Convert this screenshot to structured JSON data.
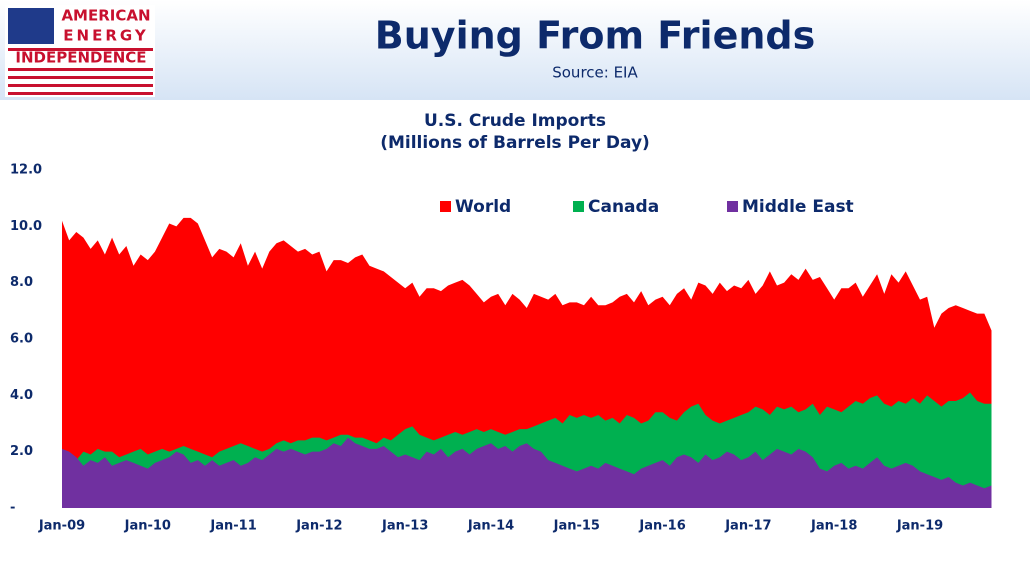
{
  "header": {
    "logo": [
      "AMERICAN",
      "ENERGY",
      "INDEPENDENCE"
    ],
    "title": "Buying From Friends",
    "source": "Source: EIA"
  },
  "chart_data": {
    "type": "area",
    "title": [
      "U.S. Crude Imports",
      "(Millions of Barrels Per Day)"
    ],
    "categories": [
      "Jan-09",
      null,
      null,
      null,
      null,
      null,
      null,
      null,
      null,
      null,
      null,
      null,
      "Jan-10",
      null,
      null,
      null,
      null,
      null,
      null,
      null,
      null,
      null,
      null,
      null,
      "Jan-11",
      null,
      null,
      null,
      null,
      null,
      null,
      null,
      null,
      null,
      null,
      null,
      "Jan-12",
      null,
      null,
      null,
      null,
      null,
      null,
      null,
      null,
      null,
      null,
      null,
      "Jan-13",
      null,
      null,
      null,
      null,
      null,
      null,
      null,
      null,
      null,
      null,
      null,
      "Jan-14",
      null,
      null,
      null,
      null,
      null,
      null,
      null,
      null,
      null,
      null,
      null,
      "Jan-15",
      null,
      null,
      null,
      null,
      null,
      null,
      null,
      null,
      null,
      null,
      null,
      "Jan-16",
      null,
      null,
      null,
      null,
      null,
      null,
      null,
      null,
      null,
      null,
      null,
      "Jan-17",
      null,
      null,
      null,
      null,
      null,
      null,
      null,
      null,
      null,
      null,
      null,
      "Jan-18",
      null,
      null,
      null,
      null,
      null,
      null,
      null,
      null,
      null,
      null,
      null,
      "Jan-19",
      null,
      null,
      null,
      null,
      null,
      null,
      null,
      null,
      null,
      null
    ],
    "series": [
      {
        "name": "World",
        "color": "#ff0000",
        "values": [
          10.2,
          9.5,
          9.8,
          9.6,
          9.2,
          9.5,
          9.0,
          9.6,
          9.0,
          9.3,
          8.6,
          9.0,
          8.8,
          9.1,
          9.6,
          10.1,
          10.0,
          10.3,
          10.3,
          10.1,
          9.5,
          8.9,
          9.2,
          9.1,
          8.9,
          9.4,
          8.6,
          9.1,
          8.5,
          9.1,
          9.4,
          9.5,
          9.3,
          9.1,
          9.2,
          9.0,
          9.1,
          8.4,
          8.8,
          8.8,
          8.7,
          8.9,
          9.0,
          8.6,
          8.5,
          8.4,
          8.2,
          8.0,
          7.8,
          8.0,
          7.5,
          7.8,
          7.8,
          7.7,
          7.9,
          8.0,
          8.1,
          7.9,
          7.6,
          7.3,
          7.5,
          7.6,
          7.2,
          7.6,
          7.4,
          7.1,
          7.6,
          7.5,
          7.4,
          7.6,
          7.2,
          7.3,
          7.3,
          7.2,
          7.5,
          7.2,
          7.2,
          7.3,
          7.5,
          7.6,
          7.3,
          7.7,
          7.2,
          7.4,
          7.5,
          7.2,
          7.6,
          7.8,
          7.4,
          8.0,
          7.9,
          7.6,
          8.0,
          7.7,
          7.9,
          7.8,
          8.1,
          7.6,
          7.9,
          8.4,
          7.9,
          8.0,
          8.3,
          8.1,
          8.5,
          8.1,
          8.2,
          7.8,
          7.4,
          7.8,
          7.8,
          8.0,
          7.5,
          7.9,
          8.3,
          7.6,
          8.3,
          8.0,
          8.4,
          7.9,
          7.4,
          7.5,
          6.4,
          6.9,
          7.1,
          7.2,
          7.1,
          7.0,
          6.9,
          6.9,
          6.3
        ]
      },
      {
        "name": "Canada",
        "color": "#00b050",
        "values": [
          1.9,
          1.8,
          1.7,
          2.0,
          1.9,
          2.1,
          2.0,
          2.0,
          1.8,
          1.9,
          2.0,
          2.1,
          1.9,
          2.0,
          2.1,
          2.0,
          2.1,
          2.2,
          2.1,
          2.0,
          1.9,
          1.8,
          2.0,
          2.1,
          2.2,
          2.3,
          2.2,
          2.1,
          2.0,
          2.1,
          2.3,
          2.4,
          2.3,
          2.4,
          2.4,
          2.5,
          2.5,
          2.4,
          2.5,
          2.6,
          2.6,
          2.5,
          2.5,
          2.4,
          2.3,
          2.5,
          2.4,
          2.6,
          2.8,
          2.9,
          2.6,
          2.5,
          2.4,
          2.5,
          2.6,
          2.7,
          2.6,
          2.7,
          2.8,
          2.7,
          2.8,
          2.7,
          2.6,
          2.7,
          2.8,
          2.8,
          2.9,
          3.0,
          3.1,
          3.2,
          3.0,
          3.3,
          3.2,
          3.3,
          3.2,
          3.3,
          3.1,
          3.2,
          3.0,
          3.3,
          3.2,
          3.0,
          3.1,
          3.4,
          3.4,
          3.2,
          3.1,
          3.4,
          3.6,
          3.7,
          3.3,
          3.1,
          3.0,
          3.1,
          3.2,
          3.3,
          3.4,
          3.6,
          3.5,
          3.3,
          3.6,
          3.5,
          3.6,
          3.4,
          3.5,
          3.7,
          3.3,
          3.6,
          3.5,
          3.4,
          3.6,
          3.8,
          3.7,
          3.9,
          4.0,
          3.7,
          3.6,
          3.8,
          3.7,
          3.9,
          3.7,
          4.0,
          3.8,
          3.6,
          3.8,
          3.8,
          3.9,
          4.1,
          3.8,
          3.7,
          3.7
        ]
      },
      {
        "name": "Middle East",
        "color": "#7030a0",
        "values": [
          2.1,
          2.0,
          1.8,
          1.5,
          1.7,
          1.6,
          1.8,
          1.5,
          1.6,
          1.7,
          1.6,
          1.5,
          1.4,
          1.6,
          1.7,
          1.8,
          2.0,
          1.9,
          1.6,
          1.7,
          1.5,
          1.7,
          1.5,
          1.6,
          1.7,
          1.5,
          1.6,
          1.8,
          1.7,
          1.9,
          2.1,
          2.0,
          2.1,
          2.0,
          1.9,
          2.0,
          2.0,
          2.1,
          2.3,
          2.2,
          2.5,
          2.3,
          2.2,
          2.1,
          2.1,
          2.2,
          2.0,
          1.8,
          1.9,
          1.8,
          1.7,
          2.0,
          1.9,
          2.1,
          1.8,
          2.0,
          2.1,
          1.9,
          2.1,
          2.2,
          2.3,
          2.1,
          2.2,
          2.0,
          2.2,
          2.3,
          2.1,
          2.0,
          1.7,
          1.6,
          1.5,
          1.4,
          1.3,
          1.4,
          1.5,
          1.4,
          1.6,
          1.5,
          1.4,
          1.3,
          1.2,
          1.4,
          1.5,
          1.6,
          1.7,
          1.5,
          1.8,
          1.9,
          1.8,
          1.6,
          1.9,
          1.7,
          1.8,
          2.0,
          1.9,
          1.7,
          1.8,
          2.0,
          1.7,
          1.9,
          2.1,
          2.0,
          1.9,
          2.1,
          2.0,
          1.8,
          1.4,
          1.3,
          1.5,
          1.6,
          1.4,
          1.5,
          1.4,
          1.6,
          1.8,
          1.5,
          1.4,
          1.5,
          1.6,
          1.5,
          1.3,
          1.2,
          1.1,
          1.0,
          1.1,
          0.9,
          0.8,
          0.9,
          0.8,
          0.7,
          0.8
        ]
      }
    ],
    "ylim": [
      0,
      12
    ],
    "yticks": [
      {
        "value": 0,
        "label": "-"
      },
      {
        "value": 2,
        "label": "2.0"
      },
      {
        "value": 4,
        "label": "4.0"
      },
      {
        "value": 6,
        "label": "6.0"
      },
      {
        "value": 8,
        "label": "8.0"
      },
      {
        "value": 10,
        "label": "10.0"
      },
      {
        "value": 12,
        "label": "12.0"
      }
    ],
    "legend": "top"
  }
}
